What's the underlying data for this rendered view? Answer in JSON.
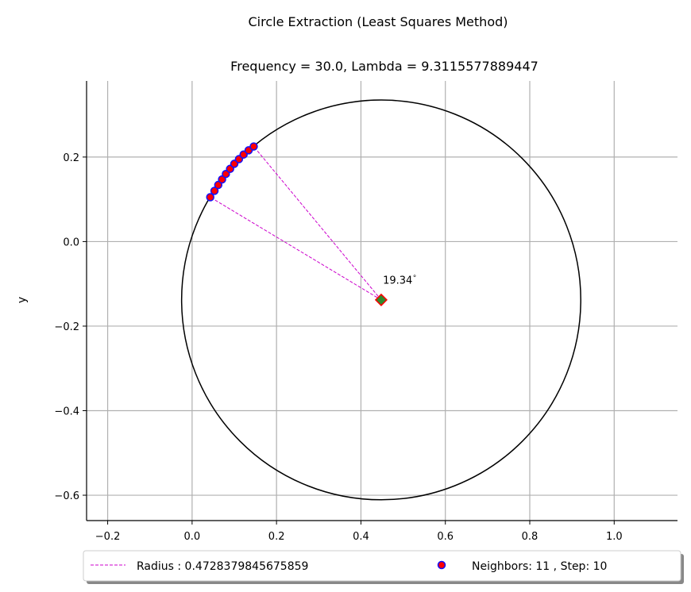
{
  "chart_data": {
    "type": "scatter",
    "title": "Circle Extraction (Least Squares Method)",
    "subtitle": "Frequency = 30.0, Lambda = 9.3115577889447",
    "xlabel": "",
    "ylabel": "y",
    "xlim": [
      -0.25,
      1.15
    ],
    "ylim": [
      -0.66,
      0.38
    ],
    "x_ticks": [
      -0.2,
      0.0,
      0.2,
      0.4,
      0.6,
      0.8,
      1.0
    ],
    "x_tick_labels": [
      "−0.2",
      "0.0",
      "0.2",
      "0.4",
      "0.6",
      "0.8",
      "1.0"
    ],
    "y_ticks": [
      0.2,
      0.0,
      -0.2,
      -0.4,
      -0.6
    ],
    "y_tick_labels": [
      "0.2",
      "0.0",
      "−0.2",
      "−0.4",
      "−0.6"
    ],
    "grid": true,
    "circle": {
      "center": [
        0.448,
        -0.138
      ],
      "radius": 0.4728379845675859,
      "color": "#000000"
    },
    "center_marker": {
      "x": 0.448,
      "y": -0.138,
      "fill": "#2e8b2e",
      "edge": "#ff0000",
      "shape": "diamond"
    },
    "neighbors": {
      "name": "Neighbors: 11 , Step: 10",
      "fill": "#ff0000",
      "edge": "#1010ff",
      "x": [
        0.043,
        0.053,
        0.062,
        0.071,
        0.08,
        0.09,
        0.1,
        0.111,
        0.122,
        0.134,
        0.146
      ],
      "y": [
        0.105,
        0.12,
        0.134,
        0.147,
        0.16,
        0.172,
        0.184,
        0.195,
        0.206,
        0.216,
        0.225
      ]
    },
    "radius_lines": {
      "name": "Radius : 0.4728379845675859",
      "color": "#cc00cc",
      "from": [
        0.448,
        -0.138
      ],
      "to_points": [
        [
          0.043,
          0.105
        ],
        [
          0.146,
          0.225
        ]
      ]
    },
    "angle_annotation": {
      "text": "19.34$^\\circ$",
      "display": "19.34",
      "x": 0.452,
      "y": -0.09
    },
    "legend": {
      "placement": "below",
      "entries": [
        "Radius : 0.4728379845675859",
        "Neighbors: 11 , Step: 10"
      ]
    }
  }
}
